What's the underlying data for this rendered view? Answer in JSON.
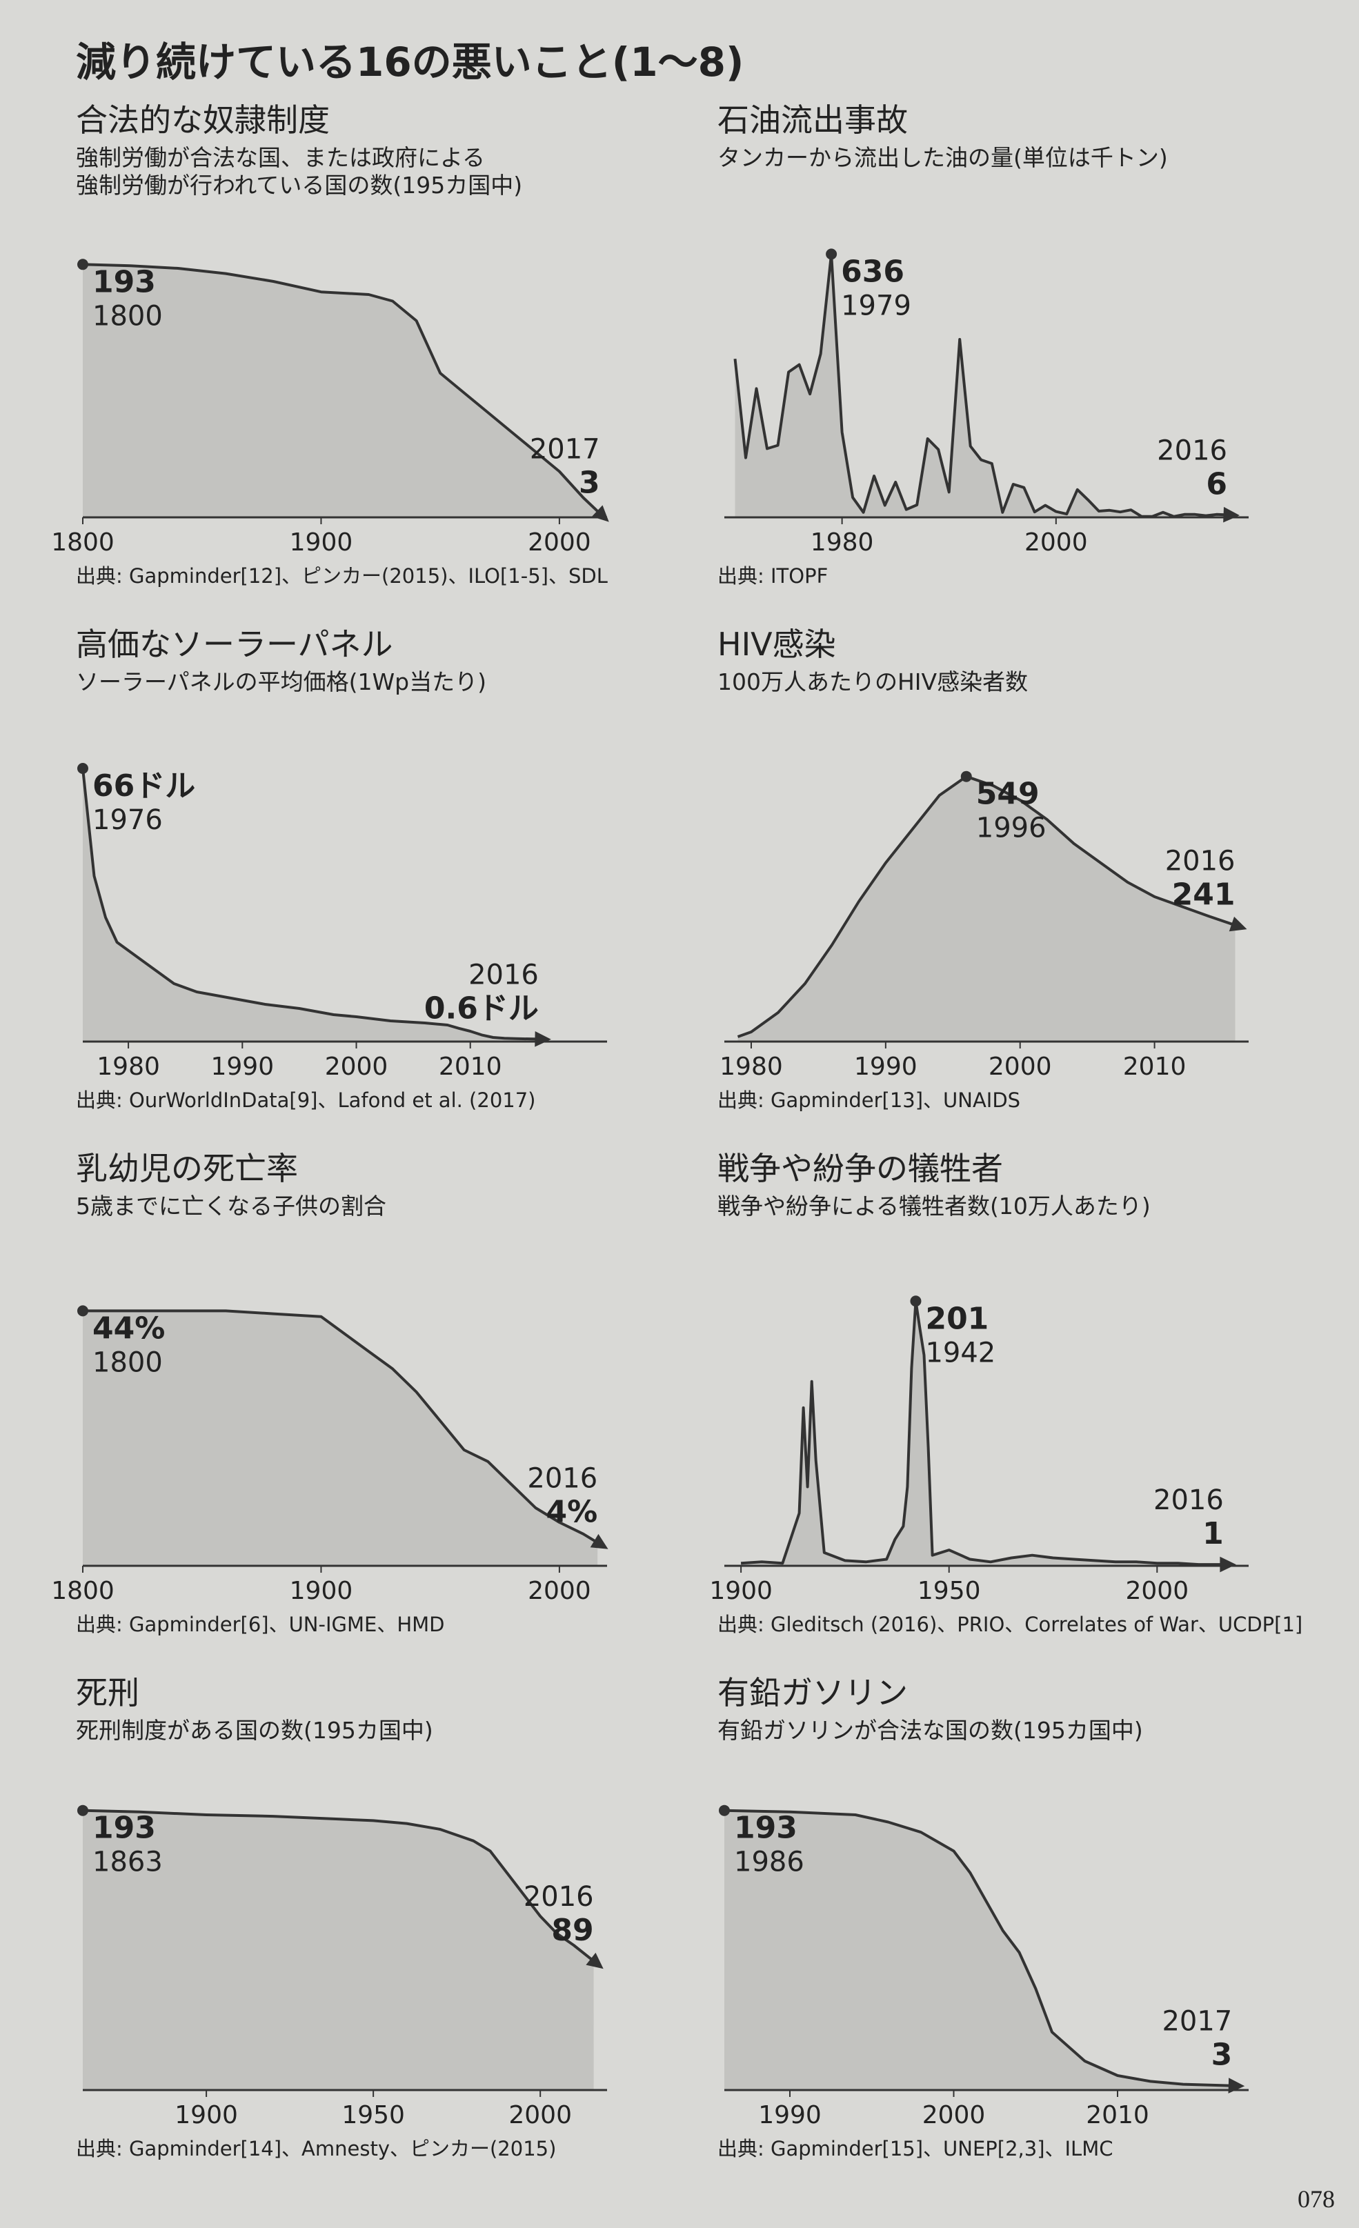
{
  "title": "減り続けている16の悪いこと(1〜8)",
  "page_number": "078",
  "chart_data": [
    {
      "type": "line",
      "title": "合法的な奴隷制度",
      "subtitle": [
        "強制労働が合法な国、または政府による",
        "強制労働が行われている国の数(195カ国中)"
      ],
      "source": "出典: Gapminder[12]、ピンカー(2015)、ILO[1-5]、SDL",
      "x": [
        1800,
        1820,
        1840,
        1860,
        1880,
        1900,
        1920,
        1930,
        1940,
        1950,
        1960,
        1970,
        1980,
        1990,
        2000,
        2010,
        2017
      ],
      "values": [
        193,
        192,
        190,
        186,
        180,
        172,
        170,
        165,
        150,
        110,
        95,
        80,
        65,
        50,
        35,
        15,
        3
      ],
      "xlim": [
        1800,
        2020
      ],
      "xticks": [
        1800,
        1900,
        2000
      ],
      "ylim": [
        0,
        200
      ]
    },
    {
      "type": "line",
      "title": "石油流出事故",
      "subtitle": [
        "タンカーから流出した油の量(単位は千トン)"
      ],
      "source": "出典: ITOPF",
      "x": [
        1970,
        1971,
        1972,
        1973,
        1974,
        1975,
        1976,
        1977,
        1978,
        1979,
        1980,
        1981,
        1982,
        1983,
        1984,
        1985,
        1986,
        1987,
        1988,
        1989,
        1990,
        1991,
        1992,
        1993,
        1994,
        1995,
        1996,
        1997,
        1998,
        1999,
        2000,
        2001,
        2002,
        2003,
        2004,
        2005,
        2006,
        2007,
        2008,
        2009,
        2010,
        2011,
        2012,
        2013,
        2014,
        2015,
        2016
      ],
      "values": [
        383,
        144,
        311,
        166,
        174,
        351,
        369,
        298,
        395,
        636,
        206,
        48,
        12,
        100,
        29,
        85,
        19,
        30,
        190,
        164,
        61,
        430,
        172,
        139,
        130,
        12,
        80,
        72,
        13,
        29,
        14,
        8,
        67,
        42,
        15,
        17,
        13,
        18,
        2,
        2,
        12,
        2,
        7,
        7,
        4,
        7,
        6
      ],
      "xlim": [
        1969,
        2018
      ],
      "xticks": [
        1980,
        2000
      ],
      "ylim": [
        0,
        700
      ]
    },
    {
      "type": "line",
      "title": "高価なソーラーパネル",
      "subtitle": [
        "ソーラーパネルの平均価格(1Wp当たり)"
      ],
      "source": "出典: OurWorldInData[9]、Lafond et al. (2017)",
      "x": [
        1976,
        1977,
        1978,
        1979,
        1980,
        1982,
        1984,
        1986,
        1988,
        1990,
        1992,
        1995,
        1998,
        2000,
        2003,
        2006,
        2008,
        2009,
        2010,
        2011,
        2012,
        2013,
        2014,
        2016
      ],
      "values": [
        66,
        40,
        30,
        24,
        22,
        18,
        14,
        12,
        11,
        10,
        9,
        8,
        6.5,
        6,
        5,
        4.5,
        4,
        3.2,
        2.5,
        1.6,
        1,
        0.8,
        0.7,
        0.6
      ],
      "value_labels": [
        "66ドル",
        null,
        null,
        null,
        null,
        null,
        null,
        null,
        null,
        null,
        null,
        null,
        null,
        null,
        null,
        null,
        null,
        null,
        null,
        null,
        null,
        null,
        null,
        "0.6ドル"
      ],
      "xlim": [
        1976,
        2022
      ],
      "xticks": [
        1980,
        1990,
        2000,
        2010
      ],
      "ylim": [
        0,
        70
      ]
    },
    {
      "type": "line",
      "title": "HIV感染",
      "subtitle": [
        "100万人あたりのHIV感染者数"
      ],
      "source": "出典: Gapminder[13]、UNAIDS",
      "x": [
        1979,
        1980,
        1982,
        1984,
        1986,
        1988,
        1990,
        1992,
        1994,
        1996,
        1998,
        2000,
        2002,
        2004,
        2006,
        2008,
        2010,
        2012,
        2014,
        2016
      ],
      "values": [
        10,
        20,
        60,
        120,
        200,
        290,
        370,
        440,
        510,
        549,
        530,
        500,
        460,
        410,
        370,
        330,
        300,
        280,
        260,
        241
      ],
      "xlim": [
        1978,
        2017
      ],
      "xticks": [
        1980,
        1990,
        2000,
        2010
      ],
      "ylim": [
        0,
        600
      ]
    },
    {
      "type": "line",
      "title": "乳幼児の死亡率",
      "subtitle": [
        "5歳までに亡くなる子供の割合"
      ],
      "source": "出典: Gapminder[6]、UN-IGME、HMD",
      "x": [
        1800,
        1820,
        1840,
        1860,
        1880,
        1900,
        1910,
        1920,
        1930,
        1940,
        1950,
        1960,
        1970,
        1980,
        1990,
        2000,
        2010,
        2016
      ],
      "values": [
        44,
        44,
        44,
        44,
        43.5,
        43,
        40,
        37,
        34,
        30,
        25,
        20,
        18,
        14,
        10,
        7.5,
        5.5,
        4
      ],
      "value_labels": [
        "44%",
        null,
        null,
        null,
        null,
        null,
        null,
        null,
        null,
        null,
        null,
        null,
        null,
        null,
        null,
        null,
        null,
        "4%"
      ],
      "xlim": [
        1800,
        2020
      ],
      "xticks": [
        1800,
        1900,
        2000
      ],
      "ylim": [
        0,
        50
      ]
    },
    {
      "type": "line",
      "title": "戦争や紛争の犠牲者",
      "subtitle": [
        "戦争や紛争による犠牲者数(10万人あたり)"
      ],
      "source": "出典: Gleditsch (2016)、PRIO、Correlates of War、UCDP[1]",
      "x": [
        1900,
        1905,
        1910,
        1914,
        1915,
        1916,
        1917,
        1918,
        1920,
        1925,
        1930,
        1935,
        1937,
        1939,
        1940,
        1941,
        1942,
        1943,
        1944,
        1945,
        1946,
        1950,
        1955,
        1960,
        1965,
        1970,
        1975,
        1980,
        1985,
        1990,
        1995,
        2000,
        2005,
        2010,
        2016
      ],
      "values": [
        2,
        3,
        2,
        40,
        120,
        60,
        140,
        80,
        10,
        4,
        3,
        5,
        20,
        30,
        60,
        150,
        201,
        180,
        160,
        90,
        8,
        12,
        5,
        3,
        6,
        8,
        6,
        5,
        4,
        3,
        3,
        2,
        2,
        1,
        1
      ],
      "xlim": [
        1896,
        2022
      ],
      "xticks": [
        1900,
        1950,
        2000
      ],
      "ylim": [
        0,
        220
      ]
    },
    {
      "type": "line",
      "title": "死刑",
      "subtitle": [
        "死刑制度がある国の数(195カ国中)"
      ],
      "source": "出典: Gapminder[14]、Amnesty、ピンカー(2015)",
      "x": [
        1863,
        1880,
        1900,
        1920,
        1940,
        1950,
        1960,
        1970,
        1980,
        1985,
        1990,
        1995,
        2000,
        2005,
        2010,
        2016
      ],
      "values": [
        193,
        192,
        190,
        189,
        187,
        186,
        184,
        180,
        172,
        165,
        150,
        135,
        120,
        108,
        100,
        89
      ],
      "xlim": [
        1863,
        2020
      ],
      "xticks": [
        1900,
        1950,
        2000
      ],
      "ylim": [
        0,
        200
      ]
    },
    {
      "type": "line",
      "title": "有鉛ガソリン",
      "subtitle": [
        "有鉛ガソリンが合法な国の数(195カ国中)"
      ],
      "source": "出典: Gapminder[15]、UNEP[2,3]、ILMC",
      "x": [
        1986,
        1990,
        1994,
        1996,
        1998,
        2000,
        2001,
        2002,
        2003,
        2004,
        2005,
        2006,
        2008,
        2010,
        2012,
        2014,
        2017
      ],
      "values": [
        193,
        192,
        190,
        185,
        178,
        165,
        150,
        130,
        110,
        95,
        70,
        40,
        20,
        10,
        6,
        4,
        3
      ],
      "xlim": [
        1986,
        2018
      ],
      "xticks": [
        1990,
        2000,
        2010
      ],
      "ylim": [
        0,
        200
      ]
    }
  ]
}
